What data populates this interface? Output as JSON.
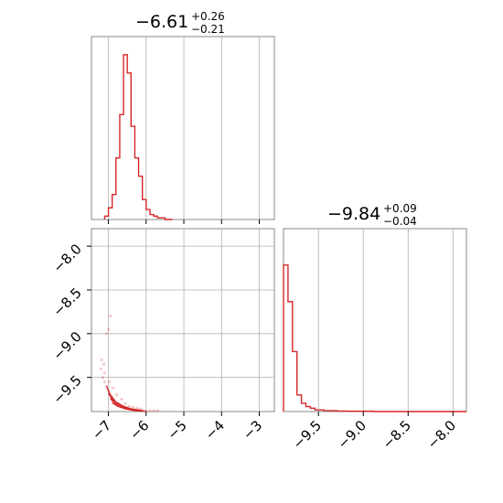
{
  "chart_data": [
    {
      "type": "histogram",
      "panel": "top-left",
      "title": {
        "median": "−6.61",
        "upper": "+0.26",
        "lower": "−0.21"
      },
      "xlim": [
        -7.45,
        -2.6
      ],
      "ylim": [
        0,
        1.0
      ],
      "grid": true,
      "color": "#d62728",
      "bin_edges": [
        -7.1,
        -7.0,
        -6.9,
        -6.8,
        -6.7,
        -6.6,
        -6.5,
        -6.4,
        -6.3,
        -6.2,
        -6.1,
        -6.0,
        -5.9,
        -5.8,
        -5.7,
        -5.6,
        -5.5,
        -5.4,
        -5.3
      ],
      "counts": [
        0.02,
        0.07,
        0.15,
        0.37,
        0.63,
        0.99,
        0.88,
        0.56,
        0.37,
        0.26,
        0.12,
        0.06,
        0.03,
        0.02,
        0.01,
        0.01,
        0.0,
        0.0
      ]
    },
    {
      "type": "histogram",
      "panel": "bottom-right",
      "title": {
        "median": "−9.84",
        "upper": "+0.09",
        "lower": "−0.04"
      },
      "xlim": [
        -9.89,
        -7.85
      ],
      "ylim": [
        0,
        1.0
      ],
      "grid": true,
      "color": "#d62728",
      "x_ticks": [
        -9.5,
        -9.0,
        -8.5,
        -8.0
      ],
      "x_tick_labels": [
        "−9.5",
        "−9.0",
        "−8.5",
        "−8.0"
      ],
      "bin_edges": [
        -9.89,
        -9.84,
        -9.79,
        -9.74,
        -9.69,
        -9.64,
        -9.59,
        -9.54,
        -9.49,
        -9.44,
        -9.39,
        -9.29,
        -9.19,
        -8.89,
        -7.85
      ],
      "counts": [
        0.88,
        0.66,
        0.36,
        0.1,
        0.05,
        0.03,
        0.02,
        0.01,
        0.01,
        0.005,
        0.005,
        0.003,
        0.002,
        0.0
      ]
    },
    {
      "type": "scatter",
      "panel": "bottom-left",
      "xlim": [
        -7.45,
        -2.6
      ],
      "ylim": [
        -9.89,
        -7.8
      ],
      "grid": true,
      "color": "#d62728",
      "x_ticks": [
        -7,
        -6,
        -5,
        -4,
        -3
      ],
      "x_tick_labels": [
        "−7",
        "−6",
        "−5",
        "−4",
        "−3"
      ],
      "y_ticks": [
        -8.0,
        -8.5,
        -9.0,
        -9.5
      ],
      "y_tick_labels": [
        "−8.0",
        "−8.5",
        "−9.0",
        "−9.5"
      ],
      "points": [
        [
          -7.15,
          -9.5
        ],
        [
          -7.1,
          -9.55
        ],
        [
          -7.05,
          -9.6
        ],
        [
          -7.0,
          -9.65
        ],
        [
          -6.95,
          -9.7
        ],
        [
          -6.9,
          -9.73
        ],
        [
          -6.85,
          -9.76
        ],
        [
          -6.8,
          -9.79
        ],
        [
          -6.7,
          -9.82
        ],
        [
          -6.6,
          -9.84
        ],
        [
          -6.5,
          -9.85
        ],
        [
          -6.4,
          -9.86
        ],
        [
          -6.3,
          -9.87
        ],
        [
          -6.2,
          -9.87
        ],
        [
          -6.1,
          -9.88
        ],
        [
          -6.0,
          -9.88
        ],
        [
          -5.9,
          -9.88
        ],
        [
          -7.2,
          -9.4
        ],
        [
          -7.18,
          -9.3
        ],
        [
          -7.1,
          -9.45
        ],
        [
          -7.05,
          -9.0
        ],
        [
          -7.0,
          -8.95
        ],
        [
          -6.95,
          -8.8
        ],
        [
          -7.12,
          -9.35
        ],
        [
          -6.98,
          -9.55
        ],
        [
          -6.88,
          -9.62
        ],
        [
          -6.78,
          -9.7
        ],
        [
          -6.65,
          -9.75
        ],
        [
          -6.55,
          -9.8
        ],
        [
          -6.45,
          -9.83
        ],
        [
          -6.35,
          -9.84
        ],
        [
          -6.25,
          -9.85
        ],
        [
          -6.15,
          -9.86
        ],
        [
          -5.8,
          -9.88
        ],
        [
          -5.7,
          -9.88
        ]
      ],
      "contours": [
        [
          [
            -7.05,
            -9.6
          ],
          [
            -6.95,
            -9.7
          ],
          [
            -6.8,
            -9.78
          ],
          [
            -6.6,
            -9.83
          ],
          [
            -6.4,
            -9.86
          ],
          [
            -6.1,
            -9.88
          ]
        ],
        [
          [
            -7.0,
            -9.68
          ],
          [
            -6.9,
            -9.75
          ],
          [
            -6.75,
            -9.8
          ],
          [
            -6.55,
            -9.85
          ],
          [
            -6.3,
            -9.87
          ],
          [
            -6.05,
            -9.885
          ]
        ],
        [
          [
            -6.95,
            -9.74
          ],
          [
            -6.85,
            -9.79
          ],
          [
            -6.7,
            -9.83
          ],
          [
            -6.5,
            -9.86
          ],
          [
            -6.25,
            -9.88
          ],
          [
            -6.0,
            -9.887
          ]
        ],
        [
          [
            -6.9,
            -9.79
          ],
          [
            -6.75,
            -9.83
          ],
          [
            -6.55,
            -9.86
          ],
          [
            -6.35,
            -9.875
          ],
          [
            -6.15,
            -9.885
          ]
        ]
      ]
    }
  ]
}
